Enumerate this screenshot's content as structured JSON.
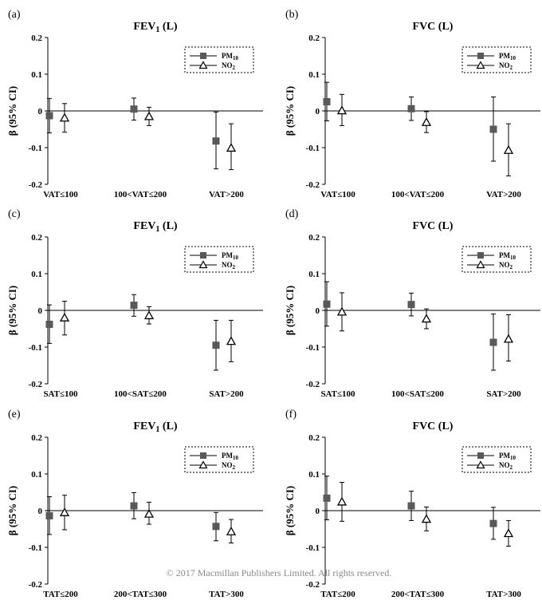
{
  "copyright": "©   2017 Macmillan Publishers Limited. All rights reserved.",
  "legend": {
    "pm_label": "PM",
    "pm_sub": "10",
    "no_label": "NO",
    "no_sub": "2"
  },
  "colors": {
    "pm10_marker": "#595959",
    "no2_marker": "#ffffff",
    "axis": "#000000",
    "legend_border": "#000000"
  },
  "chart_data": [
    {
      "panel_label": "(a)",
      "title": "FEV",
      "title_sub": "1",
      "title_suffix": " (L)",
      "ylabel": "β (95% CI)",
      "type": "scatter",
      "ylim": [
        -0.2,
        0.2
      ],
      "y_ticks": [
        "0.2",
        "0.1",
        "0",
        "-0.1",
        "-0.2"
      ],
      "categories": [
        "VAT≤100",
        "100<VAT≤200",
        "VAT>200"
      ],
      "series": [
        {
          "name": "PM10",
          "estimates": [
            -0.013,
            0.005,
            -0.082
          ],
          "lower": [
            -0.06,
            -0.025,
            -0.158
          ],
          "upper": [
            0.034,
            0.035,
            -0.003
          ]
        },
        {
          "name": "NO2",
          "estimates": [
            -0.019,
            -0.015,
            -0.101
          ],
          "lower": [
            -0.058,
            -0.04,
            -0.16
          ],
          "upper": [
            0.02,
            0.01,
            -0.035
          ]
        }
      ]
    },
    {
      "panel_label": "(b)",
      "title": "FVC",
      "title_sub": "",
      "title_suffix": " (L)",
      "ylabel": "β (95% CI)",
      "type": "scatter",
      "ylim": [
        -0.2,
        0.2
      ],
      "y_ticks": [
        "0.2",
        "0.1",
        "0",
        "-0.1",
        "-0.2"
      ],
      "categories": [
        "VAT≤100",
        "100<VAT≤200",
        "VAT>200"
      ],
      "series": [
        {
          "name": "PM10",
          "estimates": [
            0.025,
            0.006,
            -0.05
          ],
          "lower": [
            -0.027,
            -0.026,
            -0.137
          ],
          "upper": [
            0.078,
            0.038,
            0.038
          ]
        },
        {
          "name": "NO2",
          "estimates": [
            0.001,
            -0.031,
            -0.107
          ],
          "lower": [
            -0.04,
            -0.059,
            -0.177
          ],
          "upper": [
            0.045,
            -0.002,
            -0.035
          ]
        }
      ]
    },
    {
      "panel_label": "(c)",
      "title": "FEV",
      "title_sub": "1",
      "title_suffix": " (L)",
      "ylabel": "β (95% CI)",
      "type": "scatter",
      "ylim": [
        -0.2,
        0.2
      ],
      "y_ticks": [
        "0.2",
        "0.1",
        "0",
        "-0.1",
        "-0.2"
      ],
      "categories": [
        "SAT≤100",
        "100<SAT≤200",
        "SAT>200"
      ],
      "series": [
        {
          "name": "PM10",
          "estimates": [
            -0.038,
            0.014,
            -0.095
          ],
          "lower": [
            -0.09,
            -0.016,
            -0.163
          ],
          "upper": [
            0.015,
            0.043,
            -0.027
          ]
        },
        {
          "name": "NO2",
          "estimates": [
            -0.02,
            -0.014,
            -0.084
          ],
          "lower": [
            -0.067,
            -0.037,
            -0.14
          ],
          "upper": [
            0.025,
            0.01,
            -0.027
          ]
        }
      ]
    },
    {
      "panel_label": "(d)",
      "title": "FVC",
      "title_sub": "",
      "title_suffix": " (L)",
      "ylabel": "β (95% CI)",
      "type": "scatter",
      "ylim": [
        -0.2,
        0.2
      ],
      "y_ticks": [
        "0.2",
        "0.1",
        "0",
        "-0.1",
        "-0.2"
      ],
      "categories": [
        "SAT≤100",
        "100<SAT≤200",
        "SAT>200"
      ],
      "series": [
        {
          "name": "PM10",
          "estimates": [
            0.017,
            0.016,
            -0.087
          ],
          "lower": [
            -0.043,
            -0.015,
            -0.163
          ],
          "upper": [
            0.078,
            0.047,
            -0.01
          ]
        },
        {
          "name": "NO2",
          "estimates": [
            -0.004,
            -0.023,
            -0.078
          ],
          "lower": [
            -0.056,
            -0.05,
            -0.138
          ],
          "upper": [
            0.048,
            0.004,
            -0.012
          ]
        }
      ]
    },
    {
      "panel_label": "(e)",
      "title": "FEV",
      "title_sub": "1",
      "title_suffix": " (L)",
      "ylabel": "β (95% CI)",
      "type": "scatter",
      "ylim": [
        -0.2,
        0.2
      ],
      "y_ticks": [
        "0.2",
        "0.1",
        "0",
        "-0.1",
        "-0.2"
      ],
      "categories": [
        "TAT≤200",
        "200<TAT≤300",
        "TAT>300"
      ],
      "series": [
        {
          "name": "PM10",
          "estimates": [
            -0.014,
            0.013,
            -0.043
          ],
          "lower": [
            -0.065,
            -0.022,
            -0.082
          ],
          "upper": [
            0.038,
            0.049,
            -0.005
          ]
        },
        {
          "name": "NO2",
          "estimates": [
            -0.005,
            -0.009,
            -0.057
          ],
          "lower": [
            -0.052,
            -0.037,
            -0.088
          ],
          "upper": [
            0.042,
            0.023,
            -0.024
          ]
        }
      ]
    },
    {
      "panel_label": "(f)",
      "title": "FVC",
      "title_sub": "",
      "title_suffix": " (L)",
      "ylabel": "β (95% CI)",
      "type": "scatter",
      "ylim": [
        -0.2,
        0.2
      ],
      "y_ticks": [
        "0.2",
        "0.1",
        "0",
        "-0.1",
        "-0.2"
      ],
      "categories": [
        "TAT≤200",
        "200<TAT≤300",
        "TAT>300"
      ],
      "series": [
        {
          "name": "PM10",
          "estimates": [
            0.034,
            0.013,
            -0.035
          ],
          "lower": [
            -0.025,
            -0.027,
            -0.078
          ],
          "upper": [
            0.094,
            0.053,
            0.009
          ]
        },
        {
          "name": "NO2",
          "estimates": [
            0.024,
            -0.023,
            -0.062
          ],
          "lower": [
            -0.029,
            -0.055,
            -0.097
          ],
          "upper": [
            0.077,
            0.01,
            -0.027
          ]
        }
      ]
    }
  ]
}
